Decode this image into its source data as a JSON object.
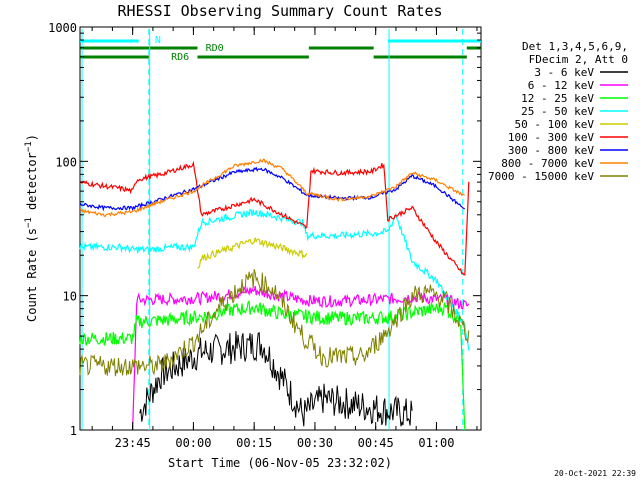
{
  "chart_data": {
    "type": "line",
    "title": "RHESSI Observing Summary Count Rates",
    "xlabel": "Start Time (06-Nov-05 23:32:02)",
    "ylabel": "Count Rate (s⁻¹ detector⁻¹)",
    "ylabel_parts": [
      "Count Rate (s",
      "−1",
      " detector",
      "−1",
      ")"
    ],
    "xlim": [
      "23:32",
      "01:11"
    ],
    "ylim": [
      1,
      1000
    ],
    "y_scale": "log",
    "x_ticks": [
      "23:45",
      "00:00",
      "00:15",
      "00:30",
      "00:45",
      "01:00"
    ],
    "x_tick_minutes": [
      13,
      28,
      43,
      58,
      73,
      88
    ],
    "y_ticks": [
      {
        "label": "1",
        "value": 1
      },
      {
        "label": "10",
        "value": 10
      },
      {
        "label": "100",
        "value": 100
      },
      {
        "label": "1000",
        "value": 1000
      }
    ],
    "legend_header": [
      "Det 1,3,4,5,6,9,",
      "FDecim 2, Att 0"
    ],
    "legend_placement": "right",
    "annotations": {
      "N": {
        "label": "N",
        "color": "#00ffff"
      },
      "RD0": {
        "label": "RD0",
        "color": "#008000"
      },
      "RD6": {
        "label": "RD6",
        "color": "#008000"
      }
    },
    "timestamp": "20-Oct-2021 22:39",
    "series": [
      {
        "name": "3 - 6 keV",
        "color": "#000000",
        "x": [
          0,
          14,
          14.5,
          20,
          30,
          45,
          55,
          60,
          70,
          82,
          84,
          92,
          99
        ],
        "y": [
          null,
          null,
          1.3,
          2.6,
          3.8,
          4.4,
          1.3,
          1.7,
          1.5,
          1.3,
          null,
          null,
          null
        ]
      },
      {
        "name": "6 - 12 keV",
        "color": "#ff00ff",
        "x": [
          13,
          14,
          22,
          30,
          37,
          43,
          49,
          56,
          62,
          72,
          78,
          82,
          90,
          96
        ],
        "y": [
          1,
          9.3,
          9.4,
          9.6,
          10.2,
          11.0,
          10.0,
          9.2,
          9.1,
          9.3,
          9.5,
          9.8,
          9.3,
          8.4
        ]
      },
      {
        "name": "12 - 25 keV",
        "color": "#00ff00",
        "x": [
          0,
          13,
          14,
          22,
          30,
          37,
          43,
          50,
          56,
          62,
          72,
          78,
          82,
          90,
          94,
          95
        ],
        "y": [
          4.8,
          4.8,
          6.4,
          6.6,
          7.0,
          7.8,
          8.2,
          7.3,
          7.0,
          6.8,
          6.8,
          7.0,
          7.5,
          8.2,
          6.5,
          1
        ]
      },
      {
        "name": "25 - 50 keV",
        "color": "#00ffff",
        "x": [
          0,
          10,
          13,
          17,
          24,
          28,
          30,
          43,
          55,
          56,
          64,
          72,
          76,
          78,
          82,
          88,
          95,
          96
        ],
        "y": [
          23,
          23,
          22,
          22,
          23,
          23,
          35,
          42,
          35,
          28,
          28,
          29,
          30,
          40,
          18,
          13,
          6.0,
          4.0
        ]
      },
      {
        "name": "50 - 100 keV",
        "color": "#cccc00",
        "x": [
          29,
          30,
          43,
          56
        ],
        "y": [
          16,
          19,
          26,
          20
        ]
      },
      {
        "name": "100 - 300 keV",
        "color": "#ff0000",
        "x": [
          0,
          5,
          10,
          13,
          14,
          20,
          28,
          30,
          43,
          56,
          57,
          64,
          72,
          75,
          76,
          82,
          88,
          95,
          96
        ],
        "y": [
          70,
          66,
          63,
          60,
          73,
          80,
          95,
          40,
          52,
          32,
          85,
          82,
          84,
          95,
          37,
          45,
          25,
          14,
          70
        ]
      },
      {
        "name": "300 - 800 keV",
        "color": "#0000ff",
        "x": [
          0,
          6,
          13,
          18,
          28,
          38,
          45,
          50,
          56,
          64,
          72,
          78,
          82,
          88,
          95
        ],
        "y": [
          48,
          45,
          45,
          50,
          62,
          83,
          88,
          75,
          56,
          53,
          54,
          62,
          78,
          65,
          44
        ]
      },
      {
        "name": "800 - 7000 keV",
        "color": "#ff8000",
        "x": [
          0,
          6,
          13,
          18,
          28,
          38,
          45,
          50,
          56,
          64,
          72,
          78,
          82,
          88,
          95
        ],
        "y": [
          43,
          40,
          42,
          48,
          60,
          92,
          102,
          88,
          58,
          52,
          55,
          65,
          82,
          72,
          55
        ]
      },
      {
        "name": "7000 - 15000 keV",
        "color": "#808000",
        "x": [
          0,
          10,
          20,
          28,
          34,
          40,
          43,
          48,
          55,
          60,
          70,
          76,
          82,
          86,
          90,
          96
        ],
        "y": [
          3.0,
          3.0,
          3.0,
          4.5,
          8.0,
          12.0,
          13.5,
          11.0,
          5.0,
          3.5,
          3.5,
          5.5,
          10.0,
          10.5,
          9.5,
          5.0
        ]
      }
    ]
  }
}
